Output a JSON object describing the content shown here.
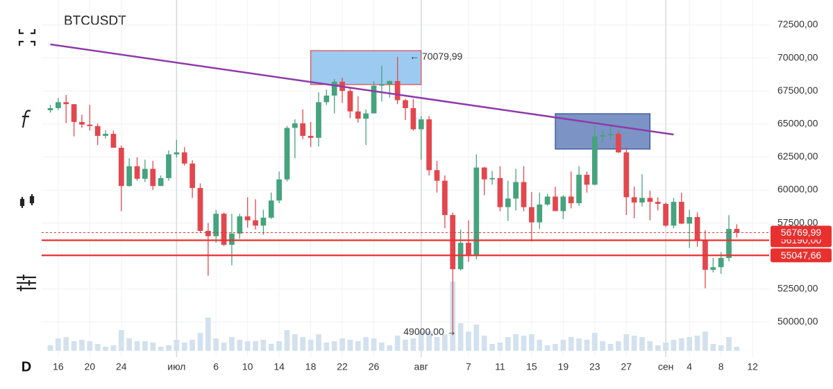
{
  "chart_data": {
    "type": "candlestick",
    "title": "BTCUSDT",
    "timeframe": "D",
    "open": [
      66040,
      66200,
      66650,
      66500,
      65150,
      64950,
      64840,
      64100,
      64250,
      63200,
      60300,
      61800,
      60850,
      61600,
      60300,
      60900,
      62700,
      62850,
      62000,
      60150,
      56900,
      56500,
      58200,
      55850,
      56700,
      58000,
      57700,
      57300,
      57900,
      59200,
      60800,
      64700,
      65050,
      64100,
      63950,
      66650,
      67150,
      68200,
      67500,
      65950,
      65400,
      65800,
      67900,
      68000,
      68250,
      66800,
      66200,
      64600,
      65350,
      61500,
      60700,
      58100,
      54000,
      56000,
      55100,
      61700,
      60800,
      60900,
      58700,
      59350,
      60600,
      58700,
      57550,
      58900,
      59500,
      58400,
      59500,
      59000,
      61150,
      60400,
      64050,
      64150,
      64250,
      62850,
      59450,
      59050,
      59400,
      59100,
      58950,
      57300,
      59100,
      57450,
      57950,
      56150,
      53950,
      54150,
      54850,
      57050
    ],
    "high": [
      66450,
      66970,
      67200,
      66500,
      65700,
      66450,
      65050,
      64530,
      64500,
      63370,
      62400,
      62480,
      62300,
      62200,
      61100,
      63000,
      63800,
      63250,
      62250,
      60500,
      57500,
      58500,
      58300,
      58200,
      58200,
      59450,
      59300,
      58500,
      59800,
      61400,
      64850,
      65350,
      66100,
      65150,
      67400,
      67600,
      68400,
      68500,
      67800,
      67100,
      66100,
      68250,
      69400,
      68300,
      70079.99,
      66900,
      66900,
      65600,
      65600,
      62200,
      61100,
      58300,
      57000,
      57700,
      62700,
      61750,
      61450,
      61800,
      60700,
      61600,
      61800,
      59850,
      59800,
      59700,
      60250,
      59600,
      61400,
      61800,
      61400,
      64900,
      64500,
      65000,
      64450,
      63250,
      60250,
      61200,
      59950,
      59450,
      59050,
      59400,
      59800,
      58500,
      58300,
      56950,
      54850,
      55300,
      58100,
      57400
    ],
    "low": [
      65860,
      66050,
      65070,
      64060,
      64700,
      64500,
      63400,
      63900,
      63200,
      58400,
      60250,
      60700,
      60600,
      60000,
      60300,
      60700,
      62450,
      61850,
      59400,
      56800,
      53500,
      56000,
      55750,
      54300,
      56300,
      57150,
      57000,
      56600,
      57800,
      59000,
      60650,
      62400,
      63850,
      63250,
      63300,
      66450,
      65800,
      66600,
      65450,
      65100,
      63400,
      65800,
      66700,
      67000,
      66500,
      65300,
      64500,
      62300,
      61100,
      59800,
      57100,
      49000,
      53900,
      54550,
      54750,
      59600,
      60400,
      58400,
      57650,
      58450,
      58400,
      56100,
      57050,
      58800,
      58400,
      57800,
      58600,
      58800,
      59800,
      60350,
      63600,
      63800,
      62800,
      58100,
      57850,
      58750,
      57700,
      58450,
      57200,
      57100,
      57400,
      55600,
      55700,
      52550,
      53750,
      53650,
      54600,
      56400
    ],
    "close": [
      66200,
      66650,
      66500,
      65150,
      64950,
      64840,
      64100,
      64250,
      63200,
      60300,
      61800,
      60850,
      61600,
      60300,
      60900,
      62700,
      62850,
      62000,
      60150,
      56900,
      56500,
      58200,
      55850,
      56700,
      58000,
      57700,
      57300,
      57900,
      59200,
      60800,
      64700,
      65050,
      64100,
      63950,
      66650,
      67150,
      68200,
      67500,
      65950,
      65400,
      65800,
      67900,
      68000,
      68250,
      66800,
      66200,
      64600,
      65350,
      61500,
      60700,
      58100,
      54000,
      56000,
      55100,
      61700,
      60800,
      60900,
      58700,
      59350,
      60600,
      58700,
      57550,
      58900,
      59500,
      58400,
      59500,
      59000,
      61150,
      60400,
      64050,
      64150,
      64250,
      62850,
      59450,
      59050,
      59400,
      59100,
      58950,
      57300,
      59100,
      57450,
      57950,
      56150,
      53950,
      54150,
      54850,
      57050,
      56769.99
    ],
    "volume": [
      8,
      18,
      20,
      14,
      16,
      14,
      10,
      6,
      8,
      30,
      18,
      14,
      14,
      12,
      6,
      8,
      16,
      12,
      16,
      26,
      48,
      18,
      12,
      20,
      16,
      14,
      14,
      16,
      10,
      14,
      30,
      24,
      20,
      16,
      24,
      12,
      14,
      18,
      16,
      14,
      20,
      18,
      12,
      8,
      22,
      16,
      18,
      28,
      28,
      20,
      24,
      100,
      40,
      28,
      38,
      22,
      10,
      12,
      20,
      24,
      22,
      24,
      16,
      8,
      10,
      16,
      20,
      18,
      16,
      26,
      14,
      10,
      14,
      24,
      22,
      20,
      14,
      8,
      12,
      16,
      18,
      20,
      22,
      28,
      10,
      8,
      20,
      6
    ],
    "up_color": "#45a37d",
    "down_color": "#e2474d",
    "volume_color": "#d3e1ef",
    "xlim": [
      -1.1,
      91.1
    ],
    "ylim": [
      47340,
      74390
    ],
    "xticks": [
      {
        "value": 1,
        "label": "16"
      },
      {
        "value": 5,
        "label": "20"
      },
      {
        "value": 9,
        "label": "24"
      },
      {
        "value": 16,
        "label": "июл"
      },
      {
        "value": 21,
        "label": "6"
      },
      {
        "value": 25,
        "label": "10"
      },
      {
        "value": 29,
        "label": "14"
      },
      {
        "value": 33,
        "label": "18"
      },
      {
        "value": 37,
        "label": "22"
      },
      {
        "value": 41,
        "label": "26"
      },
      {
        "value": 47,
        "label": "авг"
      },
      {
        "value": 53,
        "label": "7"
      },
      {
        "value": 57,
        "label": "11"
      },
      {
        "value": 61,
        "label": "15"
      },
      {
        "value": 65,
        "label": "19"
      },
      {
        "value": 69,
        "label": "23"
      },
      {
        "value": 73,
        "label": "27"
      },
      {
        "value": 78,
        "label": "сен"
      },
      {
        "value": 81,
        "label": "4"
      },
      {
        "value": 85,
        "label": "8"
      },
      {
        "value": 89,
        "label": "12"
      }
    ],
    "yticks": [
      {
        "value": 50000,
        "label": "50000,00"
      },
      {
        "value": 52500,
        "label": "52500,00"
      },
      {
        "value": 55000,
        "label": "55000,00"
      },
      {
        "value": 57500,
        "label": "57500,00"
      },
      {
        "value": 60000,
        "label": "60000,00"
      },
      {
        "value": 62500,
        "label": "62500,00"
      },
      {
        "value": 65000,
        "label": "65000,00"
      },
      {
        "value": 67500,
        "label": "67500,00"
      },
      {
        "value": 70000,
        "label": "70000,00"
      },
      {
        "value": 72500,
        "label": "72500,00"
      }
    ],
    "grid": true,
    "price_lines": [
      {
        "value": 56190,
        "label": "56190,00",
        "color": "#e8312f"
      },
      {
        "value": 55047.66,
        "label": "55047,66",
        "color": "#e8312f"
      },
      {
        "value": 56769.99,
        "label": "56769,99",
        "color": "#e8312f"
      }
    ],
    "annotations": [
      {
        "text": "← 70079,99",
        "x": 45,
        "y": 70079.99
      },
      {
        "text": "49000,00 →",
        "x": 52,
        "y": 49000
      }
    ],
    "trendline": {
      "x": [
        0,
        79
      ],
      "y": [
        71030,
        64200
      ],
      "color": "#8e3aa9"
    },
    "rectangles": [
      {
        "x": [
          33,
          47
        ],
        "y": [
          70557,
          67983
        ],
        "fill": "#9ccaf0",
        "stroke": "#e0474c"
      },
      {
        "x": [
          64,
          76
        ],
        "y": [
          65777,
          63099
        ],
        "fill": "#7c93c6",
        "stroke": "#2e4b8f"
      }
    ]
  }
}
